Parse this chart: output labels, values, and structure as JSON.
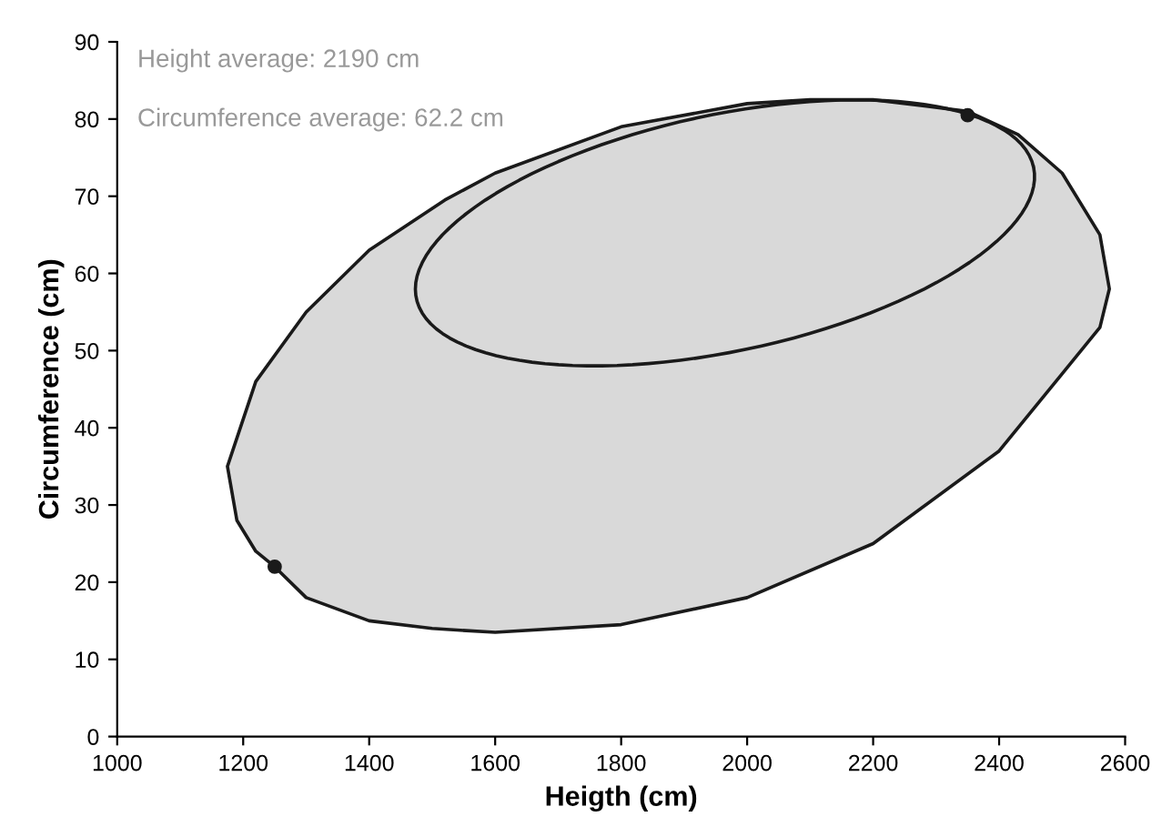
{
  "chart_data": {
    "type": "area",
    "xlabel": "Heigth (cm)",
    "ylabel": "Circumference (cm)",
    "xlim": [
      1000,
      2600
    ],
    "xticks": [
      1000,
      1200,
      1400,
      1600,
      1800,
      2000,
      2200,
      2400,
      2600
    ],
    "ylim": [
      0,
      90
    ],
    "yticks": [
      0,
      10,
      20,
      30,
      40,
      50,
      60,
      70,
      80,
      90
    ],
    "grid": false,
    "legend": false,
    "annotations": [
      "Height average: 2190 cm",
      "Circumference average: 62.2 cm"
    ],
    "series": [
      {
        "color": "#d9d9d9",
        "x": [
          1175,
          1190,
          1220,
          1250,
          1300,
          1400,
          1500,
          1600,
          1800,
          2000,
          2200,
          2400,
          2500,
          2560,
          2575,
          2560,
          2500,
          2430,
          2350,
          2200,
          2100,
          2000,
          1800,
          1600,
          1520,
          1400,
          1300,
          1220,
          1175
        ],
        "values": [
          35,
          28,
          24,
          22,
          18,
          15,
          14,
          13.5,
          14.5,
          18,
          25,
          37,
          47,
          53,
          58,
          65,
          73,
          78,
          81,
          82.5,
          82.5,
          82,
          79,
          73,
          69.5,
          63,
          55,
          46,
          35
        ]
      },
      {
        "type": "scatter",
        "color": "#1a1a1a",
        "marker": "circle",
        "x": [
          1250,
          2350
        ],
        "values": [
          22,
          80.5
        ]
      }
    ]
  }
}
